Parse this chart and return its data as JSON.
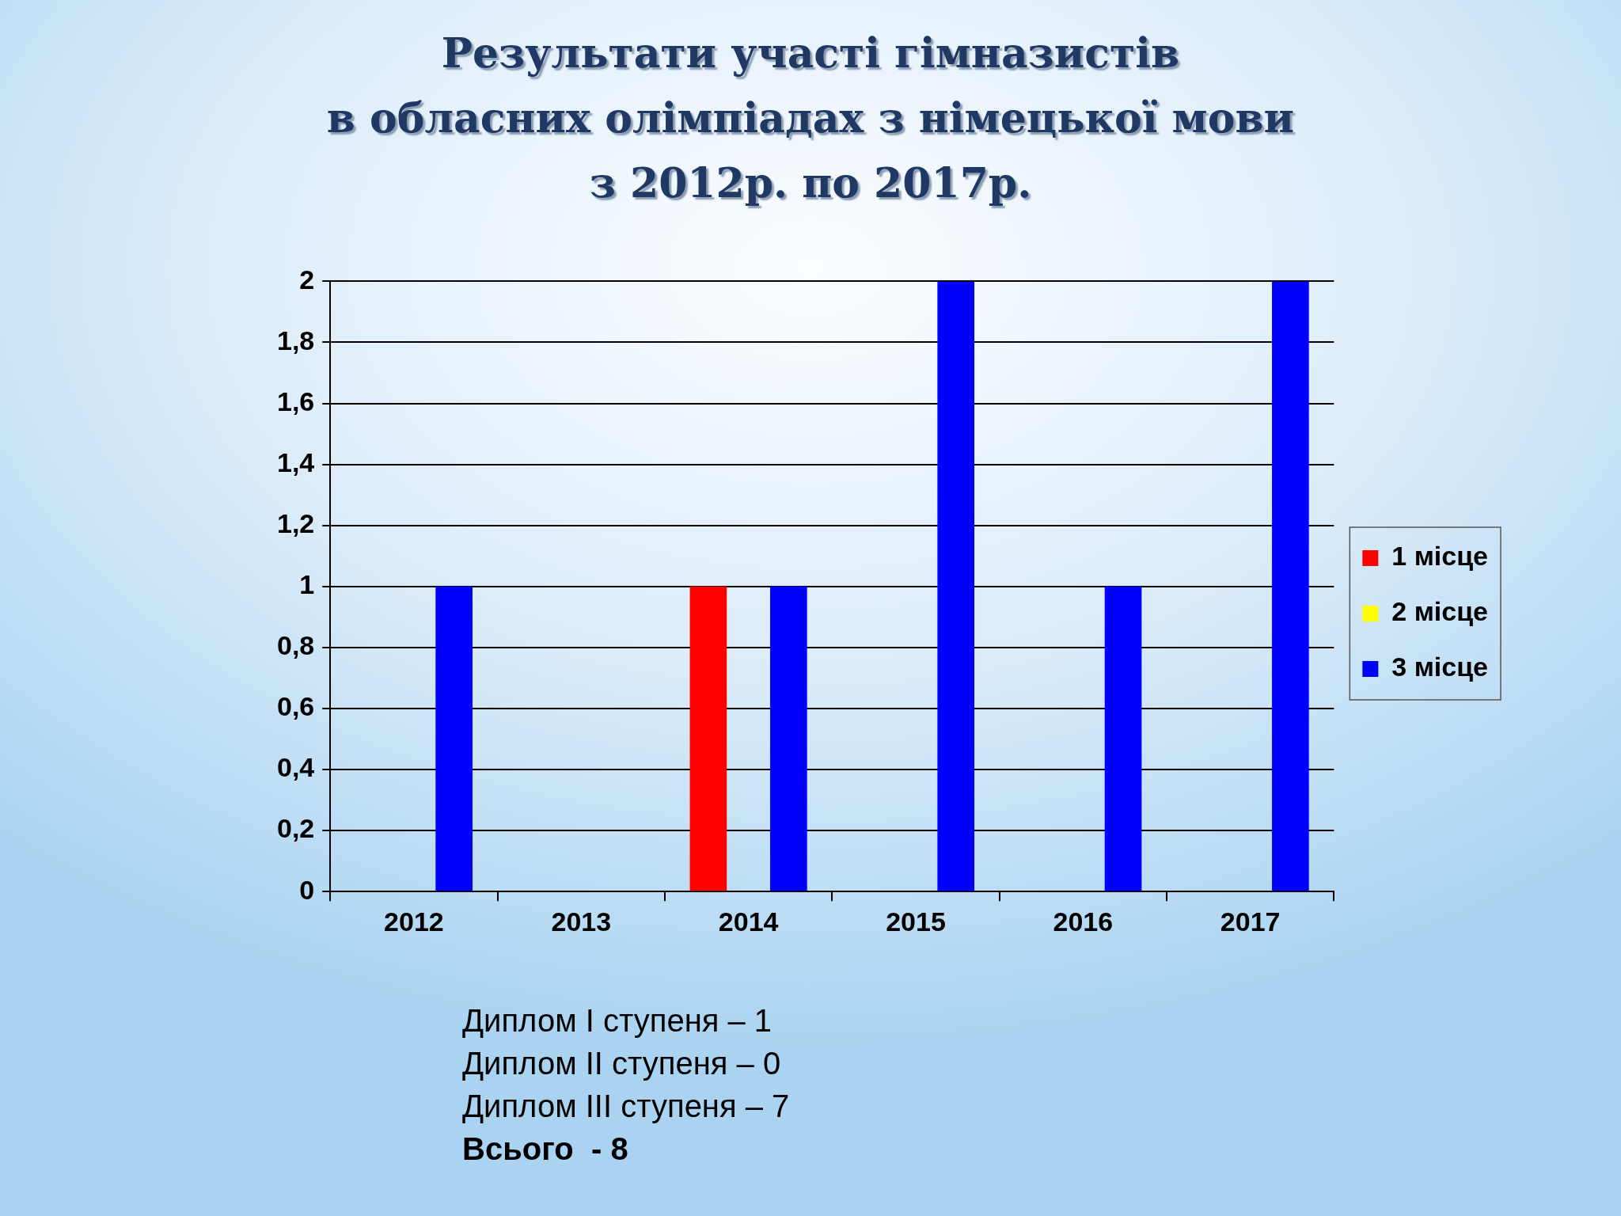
{
  "chart_data": {
    "type": "bar",
    "title": "Результати участі гімназистів\nв обласних олімпіадах з німецької мови\nз 2012р. по 2017р.",
    "categories": [
      "2012",
      "2013",
      "2014",
      "2015",
      "2016",
      "2017"
    ],
    "series": [
      {
        "name": "1 місце",
        "color": "#ff0000",
        "values": [
          0,
          0,
          1,
          0,
          0,
          0
        ]
      },
      {
        "name": "2 місце",
        "color": "#ffff00",
        "values": [
          0,
          0,
          0,
          0,
          0,
          0
        ]
      },
      {
        "name": "3 місце",
        "color": "#0000ff",
        "values": [
          1,
          0,
          1,
          2,
          1,
          2
        ]
      }
    ],
    "ylim": [
      0,
      2
    ],
    "yticks": [
      0,
      {
        "value": 0.2,
        "label": "0,2"
      },
      {
        "value": 0.4,
        "label": "0,4"
      },
      {
        "value": 0.6,
        "label": "0,6"
      },
      {
        "value": 0.8,
        "label": "0,8"
      },
      1,
      {
        "value": 1.2,
        "label": "1,2"
      },
      {
        "value": 1.4,
        "label": "1,4"
      },
      {
        "value": 1.6,
        "label": "1,6"
      },
      {
        "value": 1.8,
        "label": "1,8"
      },
      2
    ],
    "grid": "y",
    "legend": "right",
    "annotations": [
      "Диплом I ступеня – 1",
      "Диплом II ступеня – 0",
      "Диплом III ступеня – 7",
      "Всього  - 8"
    ]
  }
}
